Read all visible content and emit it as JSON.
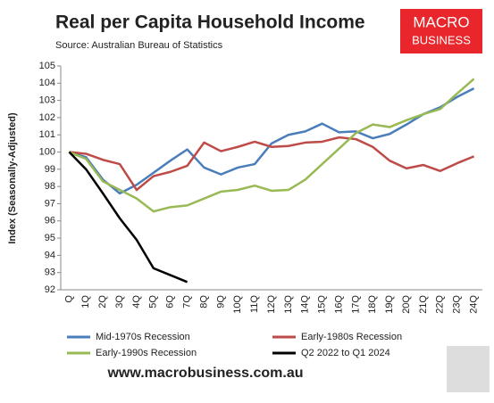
{
  "chart_data": {
    "type": "line",
    "title": "Real per Capita Household Income",
    "subtitle": "Source: Australian Bureau of Statistics",
    "y_label": "Index (Seasonally-Adjusted)",
    "logo": [
      "MACRO",
      "BUSINESS"
    ],
    "footer": "www.macrobusiness.com.au",
    "categories": [
      "Q",
      "1Q",
      "2Q",
      "3Q",
      "4Q",
      "5Q",
      "6Q",
      "7Q",
      "8Q",
      "9Q",
      "10Q",
      "11Q",
      "12Q",
      "13Q",
      "14Q",
      "15Q",
      "16Q",
      "17Q",
      "18Q",
      "19Q",
      "20Q",
      "21Q",
      "22Q",
      "23Q",
      "24Q"
    ],
    "series": [
      {
        "name": "Mid-1970s Recession",
        "color": "#4a7ebb",
        "values": [
          100,
          99.7,
          98.4,
          97.6,
          98.1,
          98.8,
          99.5,
          100.15,
          99.1,
          98.7,
          99.1,
          99.3,
          100.5,
          101.0,
          101.2,
          101.65,
          101.15,
          101.2,
          100.8,
          101.05,
          101.6,
          102.2,
          102.6,
          103.2,
          103.7
        ]
      },
      {
        "name": "Early-1980s Recession",
        "color": "#be4b48",
        "values": [
          100,
          99.9,
          99.55,
          99.3,
          97.8,
          98.6,
          98.85,
          99.2,
          100.55,
          100.05,
          100.3,
          100.6,
          100.3,
          100.35,
          100.55,
          100.6,
          100.85,
          100.75,
          100.3,
          99.5,
          99.05,
          99.25,
          98.9,
          99.35,
          99.75
        ]
      },
      {
        "name": "Early-1990s Recession",
        "color": "#98b954",
        "values": [
          100,
          99.6,
          98.3,
          97.8,
          97.3,
          96.55,
          96.8,
          96.9,
          97.3,
          97.7,
          97.8,
          98.05,
          97.75,
          97.8,
          98.4,
          99.3,
          100.2,
          101.1,
          101.6,
          101.45,
          101.85,
          102.2,
          102.5,
          103.4,
          104.25
        ]
      },
      {
        "name": "Q2 2022 to Q1 2024",
        "color": "#000000",
        "values": [
          100,
          99.0,
          97.6,
          96.15,
          94.9,
          93.25,
          92.85,
          92.45,
          null,
          null,
          null,
          null,
          null,
          null,
          null,
          null,
          null,
          null,
          null,
          null,
          null,
          null,
          null,
          null,
          null
        ]
      }
    ],
    "ylim": [
      92,
      105
    ],
    "yticks": [
      92,
      93,
      94,
      95,
      96,
      97,
      98,
      99,
      100,
      101,
      102,
      103,
      104,
      105
    ]
  }
}
